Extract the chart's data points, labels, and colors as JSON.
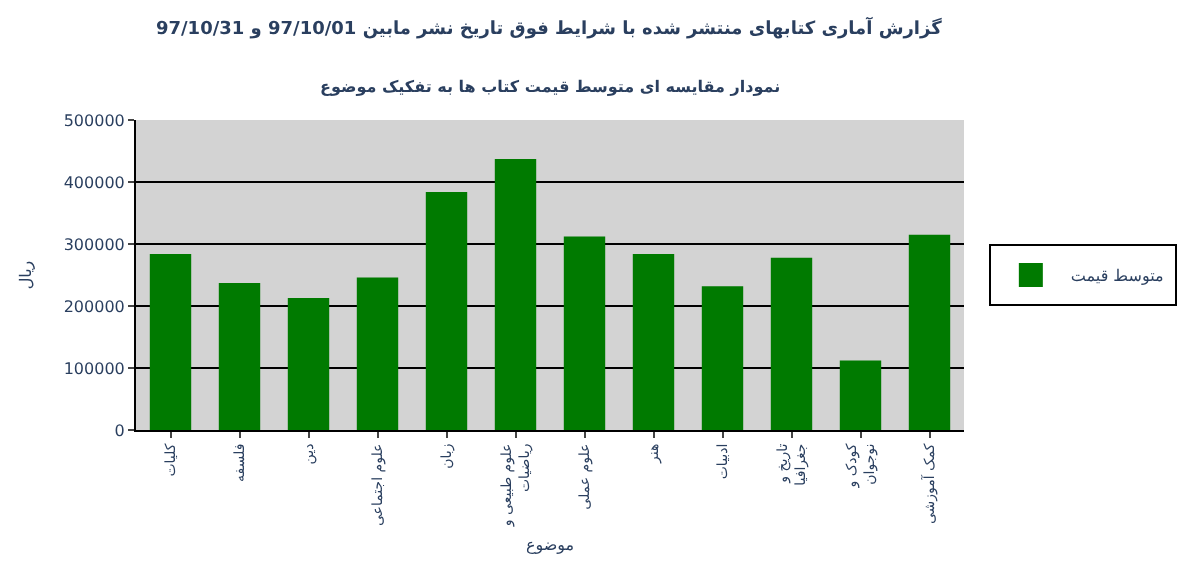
{
  "chart_data": {
    "type": "bar",
    "title": "گزارش آماری کتابهای منتشر شده با شرایط فوق تاریخ نشر مابین 97/10/01 و 97/10/31",
    "subtitle": "نمودار مقایسه ای متوسط قیمت کتاب ها به تفکیک موضوع",
    "xlabel": "موضوع",
    "ylabel": "ریال",
    "categories": [
      "کلیات",
      "فلسفه",
      "دین",
      "علوم اجتماعی",
      "زبان",
      "علوم طبیعی و ریاضیات",
      "علوم عملی",
      "هنر",
      "ادبیات",
      "تاریخ و جغرافیا",
      "کودک و نوجوان",
      "کمک آموزشی"
    ],
    "series": [
      {
        "name": "متوسط قیمت",
        "color": "#007a00",
        "values": [
          284000,
          237000,
          213000,
          246000,
          384000,
          437000,
          312000,
          284000,
          232000,
          278000,
          112000,
          315000
        ]
      }
    ],
    "ylim": [
      0,
      500000
    ],
    "yticks": [
      0,
      100000,
      200000,
      300000,
      400000,
      500000
    ],
    "grid": "y",
    "legend": "right"
  }
}
